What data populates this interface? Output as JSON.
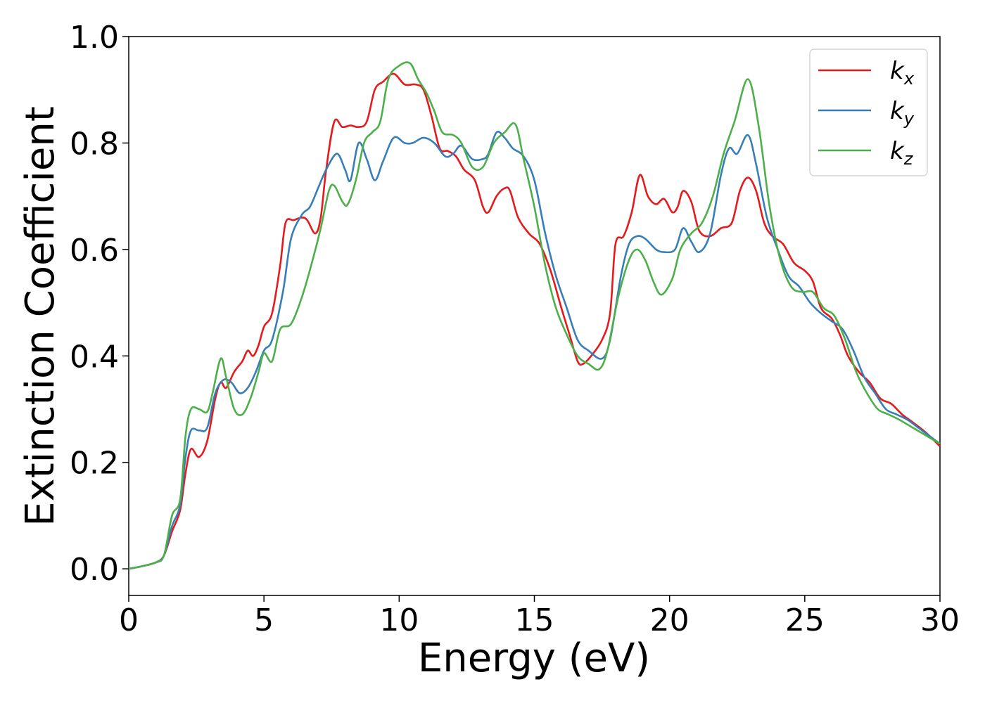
{
  "chart_data": {
    "type": "line",
    "xlabel": "Energy (eV)",
    "ylabel": "Extinction Coefficient",
    "xlim": [
      0,
      30
    ],
    "ylim": [
      -0.05,
      1.0
    ],
    "xticks": [
      0,
      5,
      10,
      15,
      20,
      25,
      30
    ],
    "xtick_labels": [
      "0",
      "5",
      "10",
      "15",
      "20",
      "25",
      "30"
    ],
    "yticks": [
      0.0,
      0.2,
      0.4,
      0.6,
      0.8,
      1.0
    ],
    "ytick_labels": [
      "0.0",
      "0.2",
      "0.4",
      "0.6",
      "0.8",
      "1.0"
    ],
    "grid": false,
    "legend_position": "top-right",
    "series": [
      {
        "name": "kx",
        "label_main": "k",
        "label_sub": "x",
        "color": "#e41a1c",
        "points": [
          [
            0,
            0.0
          ],
          [
            0.5,
            0.005
          ],
          [
            1.0,
            0.012
          ],
          [
            1.3,
            0.025
          ],
          [
            1.6,
            0.07
          ],
          [
            1.9,
            0.11
          ],
          [
            2.1,
            0.18
          ],
          [
            2.3,
            0.225
          ],
          [
            2.6,
            0.21
          ],
          [
            2.9,
            0.24
          ],
          [
            3.2,
            0.32
          ],
          [
            3.4,
            0.35
          ],
          [
            3.6,
            0.34
          ],
          [
            3.9,
            0.37
          ],
          [
            4.2,
            0.39
          ],
          [
            4.4,
            0.41
          ],
          [
            4.6,
            0.4
          ],
          [
            4.8,
            0.42
          ],
          [
            5.0,
            0.455
          ],
          [
            5.3,
            0.48
          ],
          [
            5.6,
            0.57
          ],
          [
            5.8,
            0.65
          ],
          [
            6.1,
            0.655
          ],
          [
            6.4,
            0.66
          ],
          [
            6.6,
            0.655
          ],
          [
            6.9,
            0.63
          ],
          [
            7.1,
            0.66
          ],
          [
            7.3,
            0.75
          ],
          [
            7.6,
            0.84
          ],
          [
            7.9,
            0.83
          ],
          [
            8.2,
            0.833
          ],
          [
            8.5,
            0.83
          ],
          [
            8.8,
            0.84
          ],
          [
            9.1,
            0.9
          ],
          [
            9.4,
            0.915
          ],
          [
            9.8,
            0.93
          ],
          [
            10.2,
            0.91
          ],
          [
            10.6,
            0.91
          ],
          [
            10.9,
            0.9
          ],
          [
            11.2,
            0.85
          ],
          [
            11.5,
            0.79
          ],
          [
            11.8,
            0.785
          ],
          [
            12.1,
            0.775
          ],
          [
            12.4,
            0.75
          ],
          [
            12.8,
            0.73
          ],
          [
            13.1,
            0.68
          ],
          [
            13.3,
            0.67
          ],
          [
            13.6,
            0.7
          ],
          [
            13.9,
            0.715
          ],
          [
            14.1,
            0.71
          ],
          [
            14.4,
            0.66
          ],
          [
            14.8,
            0.63
          ],
          [
            15.2,
            0.61
          ],
          [
            15.6,
            0.56
          ],
          [
            16.0,
            0.49
          ],
          [
            16.3,
            0.44
          ],
          [
            16.6,
            0.39
          ],
          [
            16.8,
            0.385
          ],
          [
            17.1,
            0.4
          ],
          [
            17.5,
            0.43
          ],
          [
            17.8,
            0.48
          ],
          [
            18.0,
            0.61
          ],
          [
            18.3,
            0.625
          ],
          [
            18.6,
            0.67
          ],
          [
            18.9,
            0.74
          ],
          [
            19.2,
            0.7
          ],
          [
            19.5,
            0.685
          ],
          [
            19.8,
            0.695
          ],
          [
            20.1,
            0.67
          ],
          [
            20.3,
            0.68
          ],
          [
            20.5,
            0.71
          ],
          [
            20.8,
            0.69
          ],
          [
            21.1,
            0.635
          ],
          [
            21.5,
            0.625
          ],
          [
            21.9,
            0.64
          ],
          [
            22.3,
            0.65
          ],
          [
            22.6,
            0.71
          ],
          [
            22.9,
            0.735
          ],
          [
            23.2,
            0.71
          ],
          [
            23.5,
            0.65
          ],
          [
            23.8,
            0.625
          ],
          [
            24.2,
            0.61
          ],
          [
            24.6,
            0.575
          ],
          [
            25.0,
            0.56
          ],
          [
            25.3,
            0.54
          ],
          [
            25.6,
            0.49
          ],
          [
            26.0,
            0.47
          ],
          [
            26.3,
            0.44
          ],
          [
            26.6,
            0.4
          ],
          [
            27.0,
            0.37
          ],
          [
            27.4,
            0.35
          ],
          [
            27.8,
            0.32
          ],
          [
            28.2,
            0.31
          ],
          [
            28.6,
            0.29
          ],
          [
            29.0,
            0.275
          ],
          [
            29.5,
            0.255
          ],
          [
            30.0,
            0.23
          ]
        ]
      },
      {
        "name": "ky",
        "label_main": "k",
        "label_sub": "y",
        "color": "#377eb8",
        "points": [
          [
            0,
            0.0
          ],
          [
            0.5,
            0.005
          ],
          [
            1.0,
            0.012
          ],
          [
            1.3,
            0.025
          ],
          [
            1.6,
            0.08
          ],
          [
            1.9,
            0.12
          ],
          [
            2.1,
            0.21
          ],
          [
            2.3,
            0.26
          ],
          [
            2.6,
            0.26
          ],
          [
            2.9,
            0.265
          ],
          [
            3.2,
            0.33
          ],
          [
            3.5,
            0.355
          ],
          [
            3.8,
            0.35
          ],
          [
            4.1,
            0.33
          ],
          [
            4.4,
            0.34
          ],
          [
            4.7,
            0.37
          ],
          [
            5.0,
            0.41
          ],
          [
            5.3,
            0.43
          ],
          [
            5.7,
            0.52
          ],
          [
            6.0,
            0.62
          ],
          [
            6.4,
            0.665
          ],
          [
            6.7,
            0.68
          ],
          [
            7.0,
            0.715
          ],
          [
            7.3,
            0.75
          ],
          [
            7.7,
            0.78
          ],
          [
            8.0,
            0.75
          ],
          [
            8.2,
            0.73
          ],
          [
            8.5,
            0.8
          ],
          [
            8.8,
            0.77
          ],
          [
            9.1,
            0.73
          ],
          [
            9.4,
            0.765
          ],
          [
            9.8,
            0.81
          ],
          [
            10.2,
            0.8
          ],
          [
            10.5,
            0.8
          ],
          [
            10.9,
            0.81
          ],
          [
            11.3,
            0.8
          ],
          [
            11.7,
            0.775
          ],
          [
            12.0,
            0.78
          ],
          [
            12.3,
            0.795
          ],
          [
            12.7,
            0.77
          ],
          [
            13.1,
            0.77
          ],
          [
            13.3,
            0.78
          ],
          [
            13.6,
            0.82
          ],
          [
            13.9,
            0.81
          ],
          [
            14.2,
            0.79
          ],
          [
            14.6,
            0.775
          ],
          [
            15.0,
            0.73
          ],
          [
            15.4,
            0.63
          ],
          [
            15.8,
            0.55
          ],
          [
            16.2,
            0.49
          ],
          [
            16.6,
            0.43
          ],
          [
            17.0,
            0.41
          ],
          [
            17.5,
            0.395
          ],
          [
            17.8,
            0.43
          ],
          [
            18.2,
            0.55
          ],
          [
            18.5,
            0.61
          ],
          [
            18.8,
            0.625
          ],
          [
            19.1,
            0.62
          ],
          [
            19.5,
            0.6
          ],
          [
            19.8,
            0.595
          ],
          [
            20.2,
            0.6
          ],
          [
            20.5,
            0.64
          ],
          [
            20.8,
            0.615
          ],
          [
            21.1,
            0.595
          ],
          [
            21.5,
            0.63
          ],
          [
            21.9,
            0.74
          ],
          [
            22.2,
            0.79
          ],
          [
            22.5,
            0.78
          ],
          [
            22.9,
            0.815
          ],
          [
            23.2,
            0.76
          ],
          [
            23.6,
            0.66
          ],
          [
            24.0,
            0.6
          ],
          [
            24.4,
            0.55
          ],
          [
            24.8,
            0.53
          ],
          [
            25.2,
            0.5
          ],
          [
            25.6,
            0.48
          ],
          [
            26.0,
            0.465
          ],
          [
            26.4,
            0.45
          ],
          [
            26.8,
            0.41
          ],
          [
            27.2,
            0.36
          ],
          [
            27.6,
            0.33
          ],
          [
            28.0,
            0.3
          ],
          [
            28.4,
            0.29
          ],
          [
            28.8,
            0.28
          ],
          [
            29.2,
            0.265
          ],
          [
            29.6,
            0.25
          ],
          [
            30.0,
            0.235
          ]
        ]
      },
      {
        "name": "kz",
        "label_main": "k",
        "label_sub": "z",
        "color": "#4daf4a",
        "points": [
          [
            0,
            0.0
          ],
          [
            0.5,
            0.005
          ],
          [
            1.0,
            0.012
          ],
          [
            1.3,
            0.025
          ],
          [
            1.6,
            0.1
          ],
          [
            1.9,
            0.13
          ],
          [
            2.1,
            0.25
          ],
          [
            2.3,
            0.3
          ],
          [
            2.6,
            0.3
          ],
          [
            2.9,
            0.295
          ],
          [
            3.1,
            0.33
          ],
          [
            3.4,
            0.395
          ],
          [
            3.6,
            0.36
          ],
          [
            3.9,
            0.3
          ],
          [
            4.2,
            0.29
          ],
          [
            4.5,
            0.32
          ],
          [
            4.8,
            0.37
          ],
          [
            5.0,
            0.405
          ],
          [
            5.3,
            0.39
          ],
          [
            5.6,
            0.45
          ],
          [
            6.0,
            0.46
          ],
          [
            6.4,
            0.51
          ],
          [
            6.8,
            0.58
          ],
          [
            7.1,
            0.64
          ],
          [
            7.4,
            0.71
          ],
          [
            7.6,
            0.72
          ],
          [
            7.9,
            0.69
          ],
          [
            8.1,
            0.685
          ],
          [
            8.4,
            0.73
          ],
          [
            8.7,
            0.8
          ],
          [
            9.0,
            0.82
          ],
          [
            9.3,
            0.84
          ],
          [
            9.6,
            0.92
          ],
          [
            10.0,
            0.945
          ],
          [
            10.4,
            0.95
          ],
          [
            10.7,
            0.92
          ],
          [
            11.0,
            0.895
          ],
          [
            11.3,
            0.86
          ],
          [
            11.6,
            0.82
          ],
          [
            12.0,
            0.815
          ],
          [
            12.3,
            0.8
          ],
          [
            12.7,
            0.755
          ],
          [
            13.1,
            0.755
          ],
          [
            13.5,
            0.8
          ],
          [
            13.9,
            0.82
          ],
          [
            14.3,
            0.835
          ],
          [
            14.6,
            0.77
          ],
          [
            15.0,
            0.68
          ],
          [
            15.4,
            0.57
          ],
          [
            15.8,
            0.49
          ],
          [
            16.2,
            0.44
          ],
          [
            16.6,
            0.4
          ],
          [
            17.0,
            0.385
          ],
          [
            17.4,
            0.375
          ],
          [
            17.7,
            0.41
          ],
          [
            18.1,
            0.51
          ],
          [
            18.5,
            0.58
          ],
          [
            18.8,
            0.6
          ],
          [
            19.1,
            0.58
          ],
          [
            19.4,
            0.54
          ],
          [
            19.7,
            0.515
          ],
          [
            20.1,
            0.545
          ],
          [
            20.4,
            0.6
          ],
          [
            20.8,
            0.63
          ],
          [
            21.2,
            0.65
          ],
          [
            21.6,
            0.7
          ],
          [
            22.0,
            0.78
          ],
          [
            22.4,
            0.84
          ],
          [
            22.9,
            0.92
          ],
          [
            23.3,
            0.83
          ],
          [
            23.7,
            0.68
          ],
          [
            24.1,
            0.58
          ],
          [
            24.5,
            0.53
          ],
          [
            24.9,
            0.52
          ],
          [
            25.3,
            0.52
          ],
          [
            25.7,
            0.49
          ],
          [
            26.1,
            0.475
          ],
          [
            26.5,
            0.43
          ],
          [
            26.9,
            0.37
          ],
          [
            27.3,
            0.33
          ],
          [
            27.7,
            0.3
          ],
          [
            28.1,
            0.29
          ],
          [
            28.5,
            0.28
          ],
          [
            29.0,
            0.265
          ],
          [
            29.5,
            0.25
          ],
          [
            30.0,
            0.235
          ]
        ]
      }
    ]
  }
}
